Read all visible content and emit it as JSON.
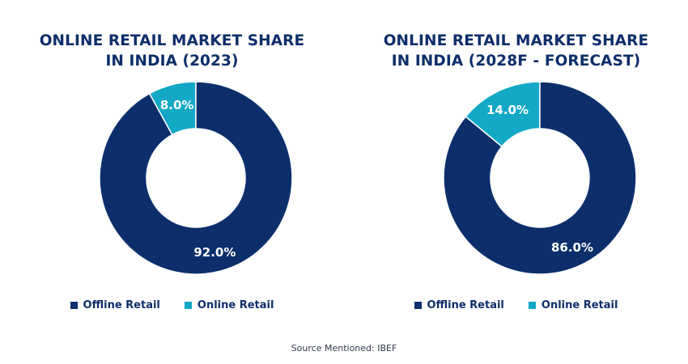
{
  "chart_data": [
    {
      "type": "pie",
      "title": [
        "ONLINE RETAIL MARKET SHARE",
        "IN INDIA (2023)"
      ],
      "categories": [
        "Online Retail",
        "Offline Retail"
      ],
      "values": [
        8.0,
        92.0
      ],
      "value_labels": [
        "8.0%",
        "92.0%"
      ],
      "colors": [
        "#12a8c6",
        "#0c2f6c"
      ],
      "donut": true,
      "legend": [
        "Offline Retail",
        "Online Retail"
      ],
      "legend_colors": [
        "#0c2f6c",
        "#12a8c6"
      ],
      "legend_placement": "bottom"
    },
    {
      "type": "pie",
      "title": [
        "ONLINE RETAIL MARKET SHARE",
        "IN INDIA (2028F - FORECAST)"
      ],
      "categories": [
        "Online Retail",
        "Offline Retail"
      ],
      "values": [
        14.0,
        86.0
      ],
      "value_labels": [
        "14.0%",
        "86.0%"
      ],
      "colors": [
        "#12a8c6",
        "#0c2f6c"
      ],
      "donut": true,
      "legend": [
        "Offline Retail",
        "Online Retail"
      ],
      "legend_colors": [
        "#0c2f6c",
        "#12a8c6"
      ],
      "legend_placement": "bottom"
    }
  ],
  "source": "Source Mentioned: IBEF"
}
